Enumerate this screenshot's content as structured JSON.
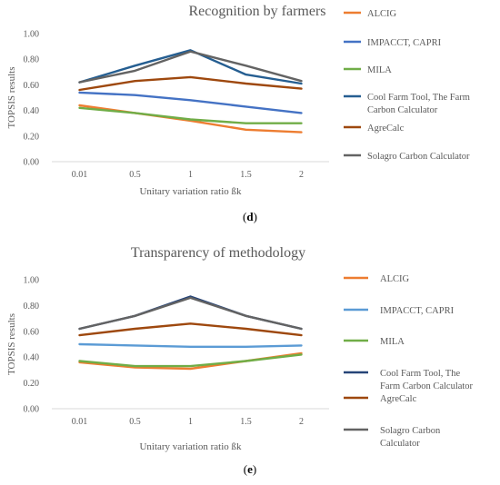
{
  "chart_data": [
    {
      "type": "line",
      "title": "Recognition by farmers",
      "xlabel": "Unitary variation ratio ßk",
      "ylabel": "TOPSIS results",
      "categories": [
        "0.01",
        "0.5",
        "1",
        "1.5",
        "2"
      ],
      "ylim": [
        0,
        1.0
      ],
      "yticks": [
        "0.00",
        "0.20",
        "0.40",
        "0.60",
        "0.80",
        "1.00"
      ],
      "grid": false,
      "legend_position": "right",
      "panel_prefix": "(",
      "panel_letter": "d",
      "panel_suffix": ")",
      "series": [
        {
          "name": "ALCIG",
          "color": "#ED7D31",
          "legend_lines": [
            "ALCIG"
          ],
          "values": [
            0.44,
            0.38,
            0.32,
            0.25,
            0.23
          ]
        },
        {
          "name": "IMPACCT, CAPRI",
          "color": "#4472C4",
          "legend_lines": [
            "IMPACCT, CAPRI"
          ],
          "values": [
            0.54,
            0.52,
            0.48,
            0.43,
            0.38
          ]
        },
        {
          "name": "MILA",
          "color": "#70AD47",
          "legend_lines": [
            "MILA"
          ],
          "values": [
            0.42,
            0.38,
            0.33,
            0.3,
            0.3
          ]
        },
        {
          "name": "Cool Farm Tool, The Farm Carbon Calculator",
          "color": "#255E91",
          "legend_lines": [
            "Cool Farm Tool, The Farm",
            "Carbon Calculator"
          ],
          "values": [
            0.62,
            0.75,
            0.87,
            0.68,
            0.61
          ]
        },
        {
          "name": "AgreCalc",
          "color": "#9E480E",
          "legend_lines": [
            "AgreCalc"
          ],
          "values": [
            0.56,
            0.63,
            0.66,
            0.61,
            0.57
          ]
        },
        {
          "name": "Solagro Carbon Calculator",
          "color": "#636363",
          "legend_lines": [
            "Solagro Carbon Calculator"
          ],
          "values": [
            0.62,
            0.71,
            0.86,
            0.75,
            0.63
          ]
        }
      ]
    },
    {
      "type": "line",
      "title": "Transparency of methodology",
      "xlabel": "Unitary variation ratio ßk",
      "ylabel": "TOPSIS results",
      "categories": [
        "0.01",
        "0.5",
        "1",
        "1.5",
        "2"
      ],
      "ylim": [
        0,
        1.0
      ],
      "yticks": [
        "0.00",
        "0.20",
        "0.40",
        "0.60",
        "0.80",
        "1.00"
      ],
      "grid": false,
      "legend_position": "right",
      "panel_prefix": "(",
      "panel_letter": "e",
      "panel_suffix": ")",
      "series": [
        {
          "name": "ALCIG",
          "color": "#ED7D31",
          "legend_lines": [
            "ALCIG"
          ],
          "values": [
            0.36,
            0.32,
            0.31,
            0.37,
            0.43
          ]
        },
        {
          "name": "IMPACCT, CAPRI",
          "color": "#5B9BD5",
          "legend_lines": [
            "IMPACCT, CAPRI"
          ],
          "values": [
            0.5,
            0.49,
            0.48,
            0.48,
            0.49
          ]
        },
        {
          "name": "MILA",
          "color": "#70AD47",
          "legend_lines": [
            "MILA"
          ],
          "values": [
            0.37,
            0.33,
            0.33,
            0.37,
            0.42
          ]
        },
        {
          "name": "Cool Farm Tool, The Farm Carbon Calculator",
          "color": "#264478",
          "legend_lines": [
            "Cool Farm Tool, The",
            "Farm Carbon Calculator"
          ],
          "values": [
            0.62,
            0.72,
            0.87,
            0.72,
            0.62
          ]
        },
        {
          "name": "AgreCalc",
          "color": "#9E480E",
          "legend_lines": [
            "AgreCalc"
          ],
          "values": [
            0.57,
            0.62,
            0.66,
            0.62,
            0.57
          ]
        },
        {
          "name": "Solagro Carbon Calculator",
          "color": "#636363",
          "legend_lines": [
            "Solagro Carbon",
            "Calculator"
          ],
          "values": [
            0.62,
            0.72,
            0.86,
            0.72,
            0.62
          ]
        }
      ]
    }
  ]
}
